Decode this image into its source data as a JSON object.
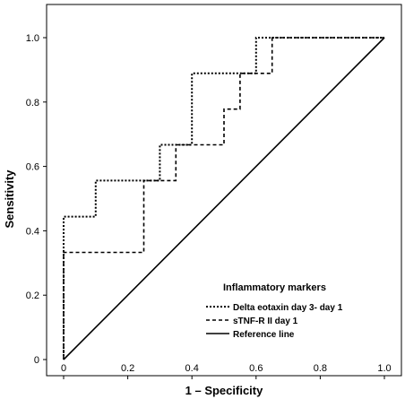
{
  "chart_data": {
    "type": "line",
    "xlabel": "1 – Specificity",
    "ylabel": "Sensitivity",
    "xlim": [
      0,
      1
    ],
    "ylim": [
      0,
      1
    ],
    "x_ticks": [
      "0",
      "0.2",
      "0.4",
      "0.6",
      "0.8",
      "1.0"
    ],
    "y_ticks": [
      "0",
      "0.2",
      "0.4",
      "0.6",
      "0.8",
      "1.0"
    ],
    "x_tick_values": [
      0,
      0.2,
      0.4,
      0.6,
      0.8,
      1.0
    ],
    "y_tick_values": [
      0,
      0.2,
      0.4,
      0.6,
      0.8,
      1.0
    ],
    "grid": false,
    "legend": {
      "title": "Inflammatory markers",
      "position": "bottom-right"
    },
    "series": [
      {
        "name": "Delta eotaxin day 3- day 1",
        "style": "dotted",
        "x": [
          0,
          0,
          0.1,
          0.1,
          0.3,
          0.3,
          0.4,
          0.4,
          0.55,
          0.55,
          0.6,
          0.6,
          1.0
        ],
        "y": [
          0,
          0.444,
          0.444,
          0.556,
          0.556,
          0.667,
          0.667,
          0.889,
          0.889,
          0.889,
          0.889,
          1.0,
          1.0
        ]
      },
      {
        "name": "sTNF-R II day 1",
        "style": "dashed",
        "x": [
          0,
          0,
          0.25,
          0.25,
          0.35,
          0.35,
          0.5,
          0.5,
          0.55,
          0.55,
          0.65,
          0.65,
          1.0
        ],
        "y": [
          0,
          0.333,
          0.333,
          0.556,
          0.556,
          0.667,
          0.667,
          0.778,
          0.778,
          0.889,
          0.889,
          1.0,
          1.0
        ]
      },
      {
        "name": "Reference line",
        "style": "solid",
        "x": [
          0,
          1.0
        ],
        "y": [
          0,
          1.0
        ]
      }
    ]
  }
}
